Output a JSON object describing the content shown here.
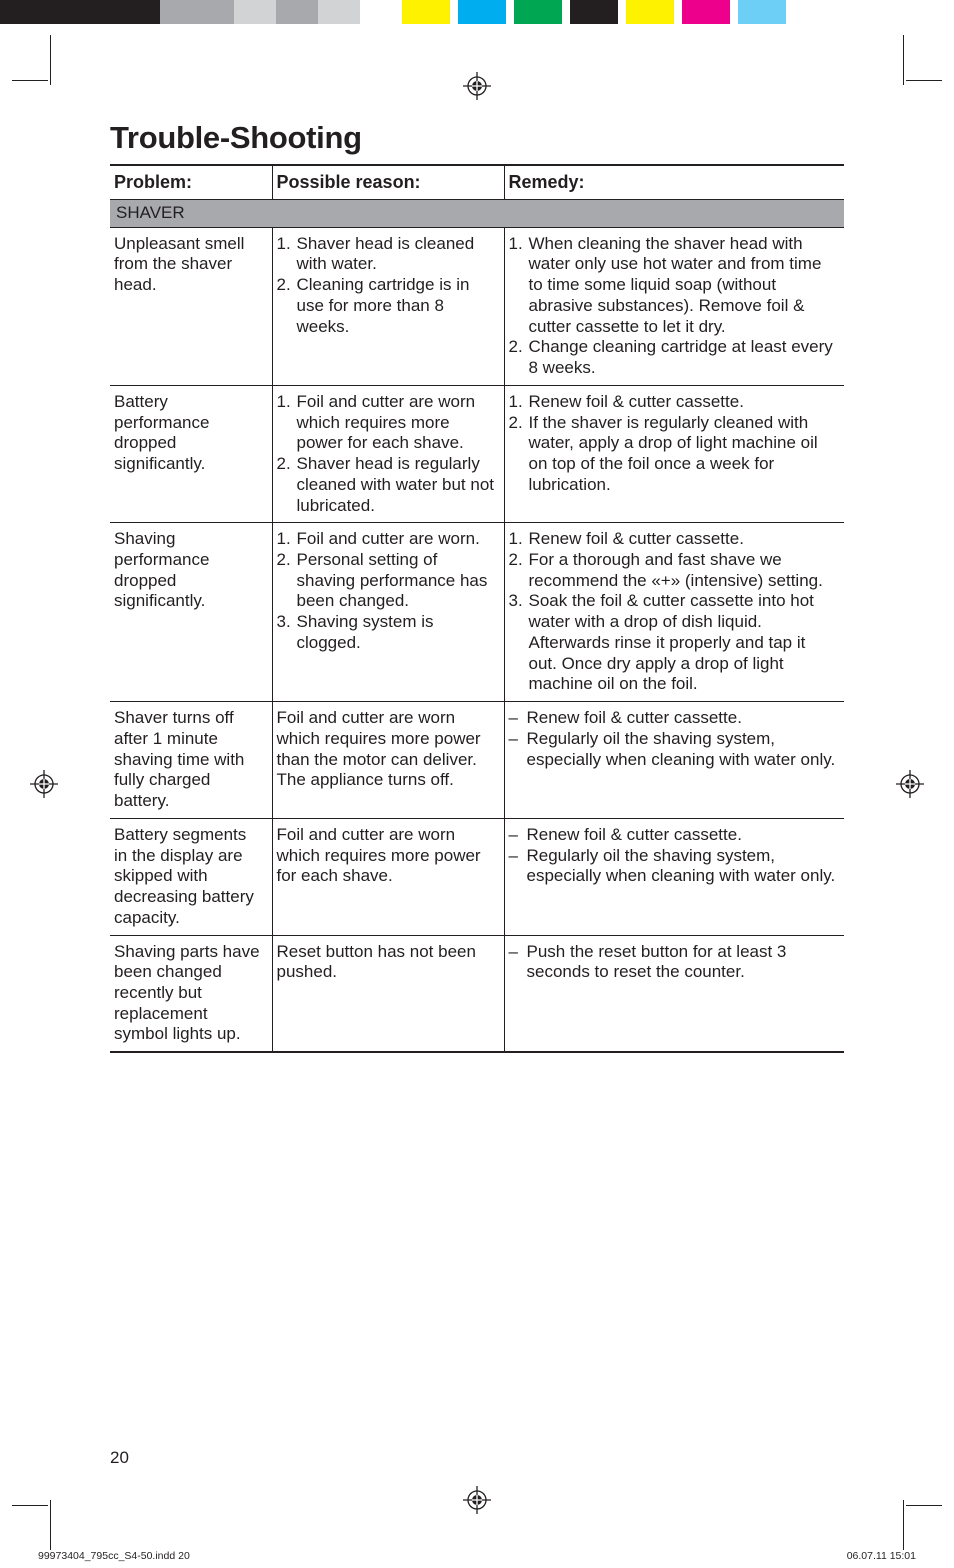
{
  "colorbar": {
    "swatches": [
      "#231f20",
      "#231f20",
      "#a7a9ac",
      "#d1d3d4",
      "#a7a9ac",
      "#d1d3d4",
      "#ffffff",
      "#fff200",
      "#ffffff",
      "#00aeef",
      "#ffffff",
      "#00a651",
      "#ffffff",
      "#231f20",
      "#ffffff",
      "#fff200",
      "#ffffff",
      "#ec008c",
      "#ffffff",
      "#6dcff6"
    ],
    "widths": [
      120,
      40,
      74,
      42,
      42,
      42,
      42,
      48,
      8,
      48,
      8,
      48,
      8,
      48,
      8,
      48,
      8,
      48,
      8,
      48
    ]
  },
  "title": "Trouble-Shooting",
  "headers": {
    "problem": "Problem:",
    "reason": "Possible reason:",
    "remedy": "Remedy:"
  },
  "section": "SHAVER",
  "rows": [
    {
      "problem": "Unpleasant smell from the shaver head.",
      "reason": [
        "Shaver head is cleaned with water.",
        "Cleaning cartridge is in use for more than 8 weeks."
      ],
      "remedy": [
        "When cleaning the shaver head with water only use hot water and from time to time some liquid soap (without abrasive substances). Remove foil & cutter cassette to let it dry.",
        "Change cleaning cartridge at least every 8 weeks."
      ]
    },
    {
      "problem": "Battery performance dropped significantly.",
      "reason": [
        "Foil and cutter are worn which requires more power for each shave.",
        "Shaver head is regularly cleaned with water but not lubricated."
      ],
      "remedy": [
        "Renew foil & cutter cassette.",
        "If the shaver is regularly cleaned with water, apply a drop of light machine oil on top of the foil once a week for lubrication."
      ]
    },
    {
      "problem": "Shaving performance dropped significantly.",
      "reason": [
        "Foil and cutter are worn.",
        "Personal setting of shaving performance has been changed.",
        "Shaving system is clogged."
      ],
      "remedy": [
        "Renew foil & cutter cassette.",
        "For a thorough and fast shave we recommend the «+» (intensive) setting.",
        "Soak the foil & cutter cassette into hot water with a drop of dish liquid. Afterwards rinse it properly and tap it out. Once dry apply a drop of light machine oil on the foil."
      ]
    },
    {
      "problem": "Shaver turns off after 1 minute shaving time with fully charged battery.",
      "reason_plain": "Foil and cutter are worn which requires more power than the motor can deliver. The appliance turns off.",
      "remedy_dash": [
        "Renew foil & cutter cassette.",
        "Regularly oil the shaving system, especially when cleaning with water only."
      ]
    },
    {
      "problem": "Battery segments in the display are skipped with decreasing battery capacity.",
      "reason_plain": "Foil and cutter are worn which requires more power for each shave.",
      "remedy_dash": [
        "Renew foil & cutter cassette.",
        "Regularly oil the shaving system, especially when cleaning with water only."
      ]
    },
    {
      "problem": "Shaving parts have been changed recently but replacement symbol lights up.",
      "reason_plain": "Reset button has not been pushed.",
      "remedy_dash": [
        "Push the reset button for at least 3 seconds to reset the counter."
      ]
    }
  ],
  "page_number": "20",
  "footer": {
    "file": "99973404_795cc_S4-50.indd   20",
    "date": "06.07.11   15:01"
  }
}
